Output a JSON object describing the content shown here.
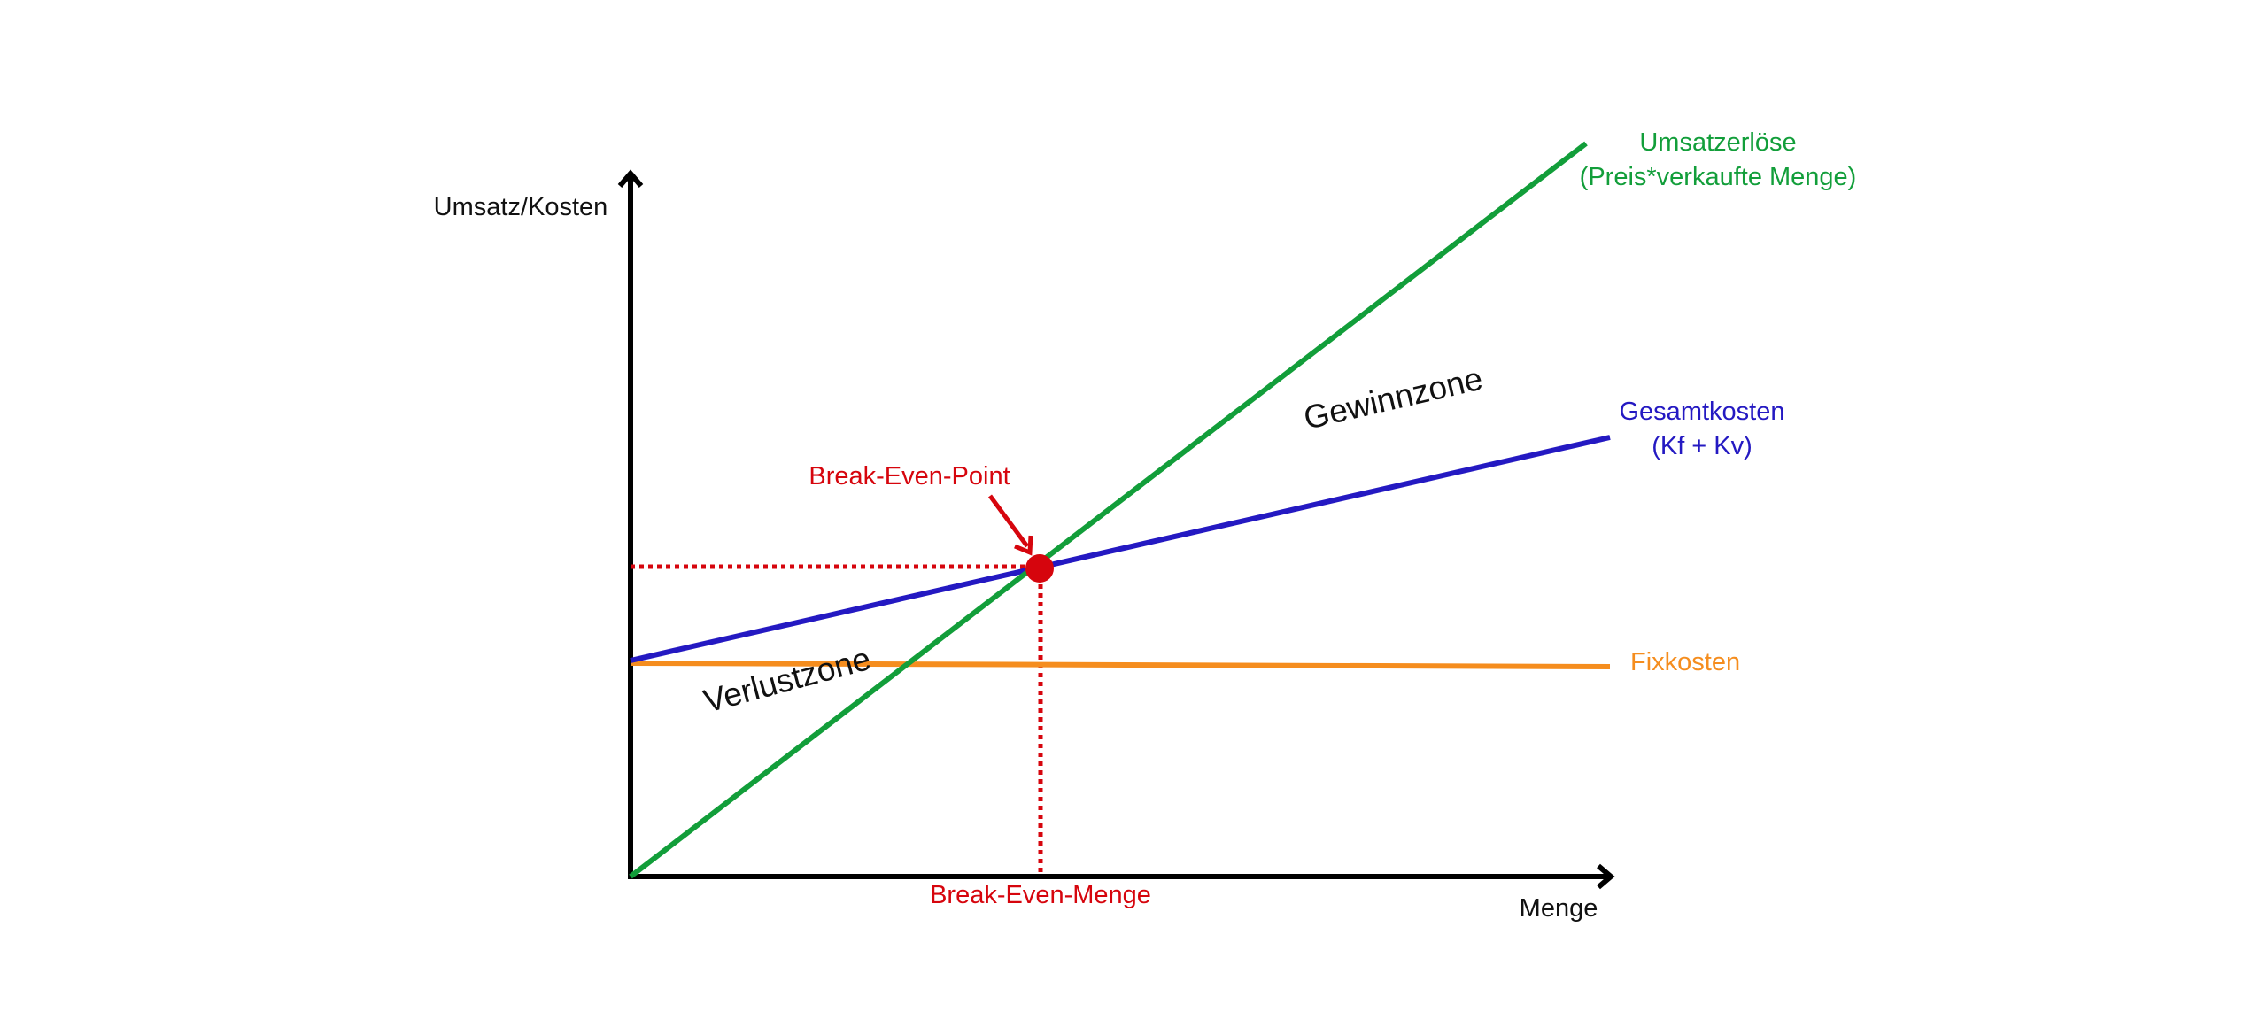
{
  "chart_data": {
    "type": "line",
    "axes": {
      "y_label": "Umsatz/Kosten",
      "x_label": "Menge"
    },
    "series": [
      {
        "key": "umsatz",
        "label_line1": "Umsatzerlöse",
        "label_line2": "(Preis*verkaufte Menge)",
        "color": "#129e3a"
      },
      {
        "key": "gesamtkosten",
        "label_line1": "Gesamtkosten",
        "label_line2": "(Kf + Kv)",
        "color": "#2419c2"
      },
      {
        "key": "fixkosten",
        "label_line1": "Fixkosten",
        "color": "#f58d1e"
      }
    ],
    "break_even": {
      "point_label": "Break-Even-Point",
      "quantity_label": "Break-Even-Menge",
      "color": "#d6050d"
    },
    "zones": {
      "loss": "Verlustzone",
      "profit": "Gewinnzone"
    },
    "axis_color": "#000000",
    "grid": false
  }
}
